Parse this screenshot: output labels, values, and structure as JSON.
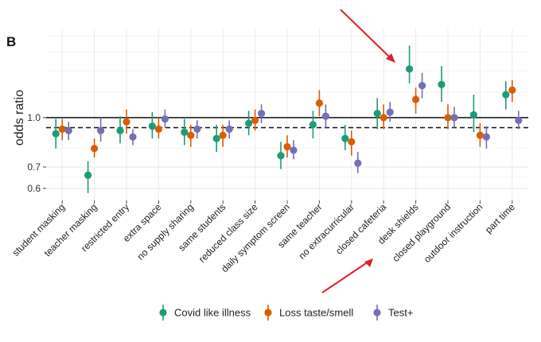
{
  "panel_label": "B",
  "chart_data": {
    "type": "scatter",
    "title": "",
    "xlabel": "",
    "ylabel": "odds ratio",
    "y_scale": "log",
    "ylim": [
      0.55,
      1.9
    ],
    "y_ticks": [
      0.6,
      0.7,
      1.0
    ],
    "y_tick_labels": [
      "0.6",
      "0.7",
      "1.0"
    ],
    "reference_lines": [
      {
        "value": 1.0,
        "style": "solid"
      },
      {
        "value": 0.93,
        "style": "dashed"
      }
    ],
    "grid": true,
    "legend_position": "bottom",
    "categories": [
      "student masking",
      "teacher masking",
      "restricted entry",
      "extra space",
      "no supply sharing",
      "same students",
      "reduced class size",
      "daily symptom screen",
      "same teacher",
      "no extracurricular",
      "closed cafeteria",
      "desk shields",
      "closed playground",
      "outdoor instruction",
      "part time"
    ],
    "series": [
      {
        "name": "Covid like illness",
        "color": "#1b9e77",
        "values": [
          0.89,
          0.66,
          0.91,
          0.94,
          0.9,
          0.86,
          0.96,
          0.76,
          0.95,
          0.86,
          1.03,
          1.42,
          1.27,
          1.02,
          1.18
        ],
        "lower": [
          0.8,
          0.58,
          0.83,
          0.86,
          0.82,
          0.78,
          0.88,
          0.69,
          0.86,
          0.79,
          0.92,
          1.28,
          1.12,
          0.9,
          1.06
        ],
        "upper": [
          0.99,
          0.73,
          1.01,
          1.04,
          0.99,
          0.95,
          1.05,
          0.84,
          1.05,
          0.95,
          1.15,
          1.68,
          1.45,
          1.18,
          1.3
        ]
      },
      {
        "name": "Loss taste/smell",
        "color": "#d95f02",
        "values": [
          0.92,
          0.8,
          0.97,
          0.92,
          0.88,
          0.88,
          0.98,
          0.81,
          1.11,
          0.84,
          1.0,
          1.14,
          1.0,
          0.88,
          1.22
        ],
        "lower": [
          0.85,
          0.75,
          0.89,
          0.86,
          0.81,
          0.81,
          0.91,
          0.75,
          1.01,
          0.76,
          0.92,
          1.03,
          0.92,
          0.81,
          1.12
        ],
        "upper": [
          0.99,
          0.86,
          1.06,
          1.0,
          0.95,
          0.95,
          1.06,
          0.88,
          1.22,
          0.91,
          1.1,
          1.24,
          1.1,
          0.96,
          1.31
        ]
      },
      {
        "name": "Test+",
        "color": "#7570b3",
        "values": [
          0.91,
          0.91,
          0.87,
          0.99,
          0.92,
          0.92,
          1.03,
          0.79,
          1.01,
          0.72,
          1.04,
          1.26,
          1.0,
          0.87,
          0.98
        ],
        "lower": [
          0.85,
          0.84,
          0.82,
          0.93,
          0.86,
          0.86,
          0.96,
          0.74,
          0.93,
          0.67,
          0.97,
          1.15,
          0.93,
          0.8,
          0.92
        ],
        "upper": [
          0.97,
          1.0,
          0.92,
          1.06,
          0.98,
          0.98,
          1.1,
          0.85,
          1.1,
          0.78,
          1.12,
          1.38,
          1.08,
          0.94,
          1.05
        ]
      }
    ]
  }
}
